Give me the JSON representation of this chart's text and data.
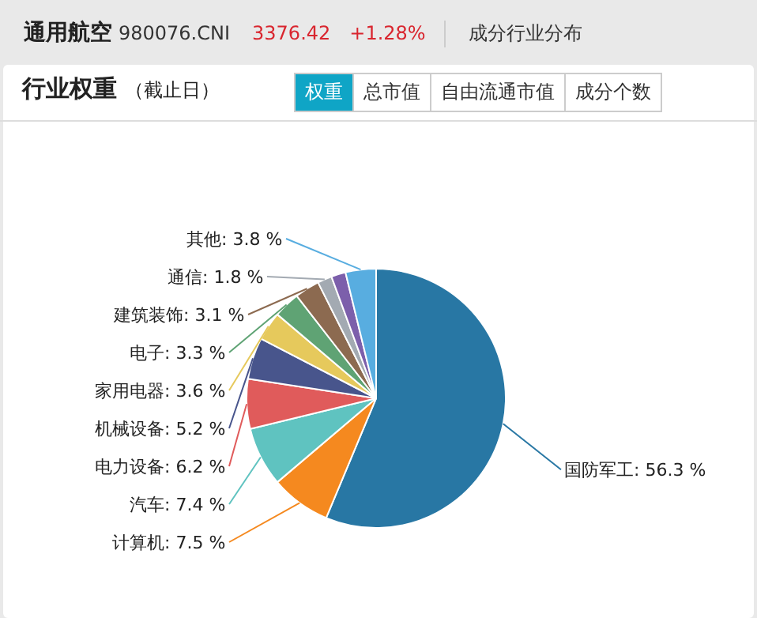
{
  "chart_data": {
    "type": "pie",
    "title": "行业权重",
    "subtitle": "（截止日）",
    "annotations": [
      "通用航空",
      "980076.CNI",
      "3376.42",
      "+1.28%",
      "成分行业分布",
      "权重",
      "总市值",
      "自由流通市值",
      "成分个数"
    ],
    "categories": [
      "国防军工",
      "计算机",
      "汽车",
      "电力设备",
      "机械设备",
      "家用电器",
      "电子",
      "建筑装饰",
      "通信",
      null,
      "其他"
    ],
    "values": [
      56.3,
      7.5,
      7.4,
      6.2,
      5.2,
      3.6,
      3.3,
      3.1,
      1.8,
      1.8,
      3.8
    ],
    "value_labels": [
      "56.3 %",
      "7.5 %",
      "7.4 %",
      "6.2 %",
      "5.2 %",
      "3.6 %",
      "3.3 %",
      "3.1 %",
      "1.8 %",
      null,
      "3.8 %"
    ],
    "colors": [
      "#2877a4",
      "#f5891f",
      "#5fc3c0",
      "#e05b5b",
      "#48558c",
      "#e6c95c",
      "#5fa374",
      "#8c6a50",
      "#a3aab2",
      "#7c5fab",
      "#58ade0"
    ],
    "legend": false
  }
}
